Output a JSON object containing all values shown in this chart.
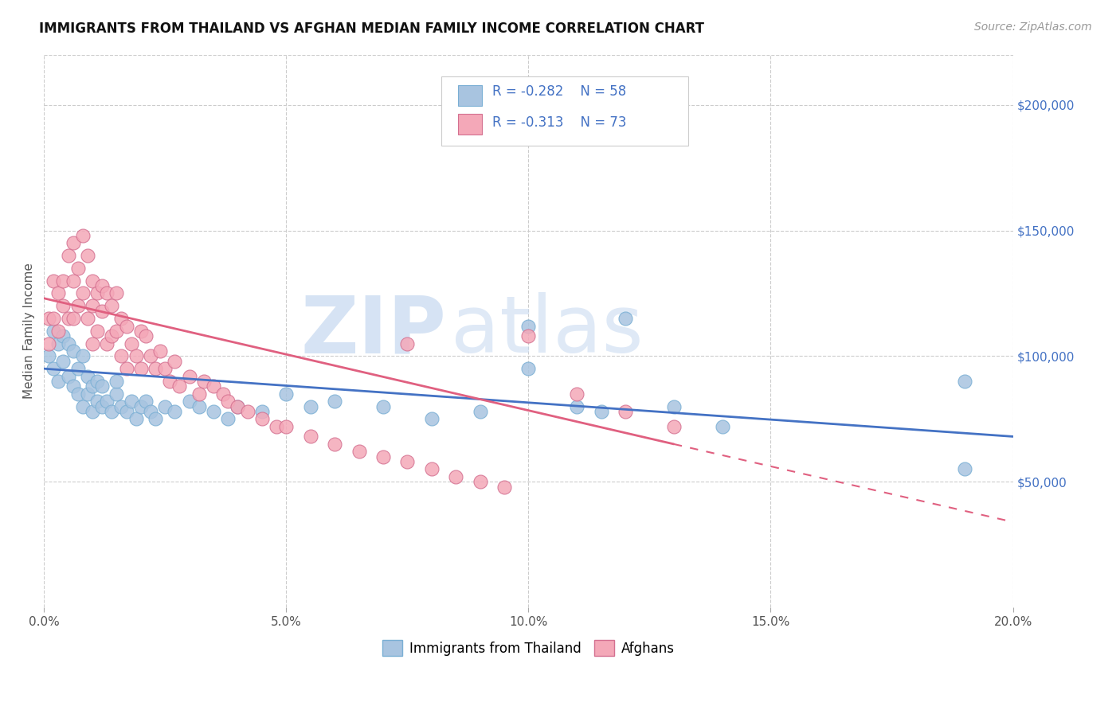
{
  "title": "IMMIGRANTS FROM THAILAND VS AFGHAN MEDIAN FAMILY INCOME CORRELATION CHART",
  "source": "Source: ZipAtlas.com",
  "ylabel": "Median Family Income",
  "xlim": [
    0.0,
    0.2
  ],
  "ylim": [
    0,
    220000
  ],
  "xtick_labels": [
    "0.0%",
    "5.0%",
    "10.0%",
    "15.0%",
    "20.0%"
  ],
  "xtick_values": [
    0.0,
    0.05,
    0.1,
    0.15,
    0.2
  ],
  "ytick_values": [
    50000,
    100000,
    150000,
    200000
  ],
  "ytick_labels": [
    "$50,000",
    "$100,000",
    "$150,000",
    "$200,000"
  ],
  "color_thailand": "#a8c4e0",
  "color_afghan": "#f4a8b8",
  "color_trend_thailand": "#4472c4",
  "color_trend_afghan": "#e06080",
  "color_text_blue": "#4472c4",
  "color_text_negval": "#e06080",
  "background_color": "#ffffff",
  "grid_color": "#cccccc",
  "watermark_zip": "ZIP",
  "watermark_atlas": "atlas",
  "thailand_x": [
    0.001,
    0.002,
    0.002,
    0.003,
    0.003,
    0.004,
    0.004,
    0.005,
    0.005,
    0.006,
    0.006,
    0.007,
    0.007,
    0.008,
    0.008,
    0.009,
    0.009,
    0.01,
    0.01,
    0.011,
    0.011,
    0.012,
    0.012,
    0.013,
    0.014,
    0.015,
    0.015,
    0.016,
    0.017,
    0.018,
    0.019,
    0.02,
    0.021,
    0.022,
    0.023,
    0.025,
    0.027,
    0.03,
    0.032,
    0.035,
    0.038,
    0.04,
    0.045,
    0.05,
    0.055,
    0.06,
    0.07,
    0.08,
    0.09,
    0.1,
    0.11,
    0.115,
    0.12,
    0.13,
    0.14,
    0.19,
    0.19,
    0.1
  ],
  "thailand_y": [
    100000,
    95000,
    110000,
    105000,
    90000,
    98000,
    108000,
    92000,
    105000,
    88000,
    102000,
    95000,
    85000,
    100000,
    80000,
    92000,
    85000,
    88000,
    78000,
    82000,
    90000,
    80000,
    88000,
    82000,
    78000,
    85000,
    90000,
    80000,
    78000,
    82000,
    75000,
    80000,
    82000,
    78000,
    75000,
    80000,
    78000,
    82000,
    80000,
    78000,
    75000,
    80000,
    78000,
    85000,
    80000,
    82000,
    80000,
    75000,
    78000,
    112000,
    80000,
    78000,
    115000,
    80000,
    72000,
    90000,
    55000,
    95000
  ],
  "afghan_x": [
    0.001,
    0.001,
    0.002,
    0.002,
    0.003,
    0.003,
    0.004,
    0.004,
    0.005,
    0.005,
    0.006,
    0.006,
    0.006,
    0.007,
    0.007,
    0.008,
    0.008,
    0.009,
    0.009,
    0.01,
    0.01,
    0.01,
    0.011,
    0.011,
    0.012,
    0.012,
    0.013,
    0.013,
    0.014,
    0.014,
    0.015,
    0.015,
    0.016,
    0.016,
    0.017,
    0.017,
    0.018,
    0.019,
    0.02,
    0.02,
    0.021,
    0.022,
    0.023,
    0.024,
    0.025,
    0.026,
    0.027,
    0.028,
    0.03,
    0.032,
    0.033,
    0.035,
    0.037,
    0.038,
    0.04,
    0.042,
    0.045,
    0.048,
    0.05,
    0.055,
    0.06,
    0.065,
    0.07,
    0.075,
    0.08,
    0.085,
    0.09,
    0.095,
    0.1,
    0.11,
    0.12,
    0.13,
    0.075
  ],
  "afghan_y": [
    115000,
    105000,
    130000,
    115000,
    125000,
    110000,
    130000,
    120000,
    140000,
    115000,
    145000,
    130000,
    115000,
    135000,
    120000,
    148000,
    125000,
    140000,
    115000,
    130000,
    120000,
    105000,
    125000,
    110000,
    128000,
    118000,
    125000,
    105000,
    120000,
    108000,
    125000,
    110000,
    115000,
    100000,
    112000,
    95000,
    105000,
    100000,
    110000,
    95000,
    108000,
    100000,
    95000,
    102000,
    95000,
    90000,
    98000,
    88000,
    92000,
    85000,
    90000,
    88000,
    85000,
    82000,
    80000,
    78000,
    75000,
    72000,
    72000,
    68000,
    65000,
    62000,
    60000,
    58000,
    55000,
    52000,
    50000,
    48000,
    108000,
    85000,
    78000,
    72000,
    105000
  ],
  "trend_thai_x0": 0.0,
  "trend_thai_x1": 0.2,
  "trend_thai_y0": 95000,
  "trend_thai_y1": 68000,
  "trend_afghan_solid_x0": 0.0,
  "trend_afghan_solid_x1": 0.13,
  "trend_afghan_y0": 123000,
  "trend_afghan_y1": 65000,
  "trend_afghan_dash_x0": 0.13,
  "trend_afghan_dash_x1": 0.2,
  "trend_afghan_dash_y0": 65000,
  "trend_afghan_dash_y1": 34000
}
